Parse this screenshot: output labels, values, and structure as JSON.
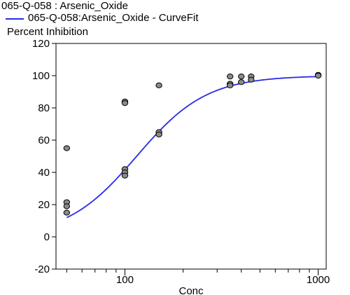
{
  "chart_data": {
    "type": "scatter",
    "title": "065-Q-058 : Arsenic_Oxide",
    "legend": [
      {
        "label": "065-Q-058:Arsenic_Oxide - CurveFit",
        "color": "#2a2ae6"
      }
    ],
    "ylabel": "Percent Inhibition",
    "xlabel": "Conc",
    "x_scale": "log",
    "xlim": [
      44,
      1100
    ],
    "ylim": [
      -20,
      120
    ],
    "y_ticks": [
      -20,
      0,
      20,
      40,
      60,
      80,
      100,
      120
    ],
    "x_major_ticks": [
      100,
      1000
    ],
    "x_minor_ticks": [
      50,
      60,
      70,
      80,
      90,
      200,
      300,
      400,
      500,
      600,
      700,
      800,
      900
    ],
    "grid": false,
    "points": [
      {
        "x": 50,
        "y": 55
      },
      {
        "x": 50,
        "y": 21.5
      },
      {
        "x": 50,
        "y": 19
      },
      {
        "x": 50,
        "y": 15
      },
      {
        "x": 100,
        "y": 84
      },
      {
        "x": 100,
        "y": 83
      },
      {
        "x": 100,
        "y": 42
      },
      {
        "x": 100,
        "y": 40
      },
      {
        "x": 100,
        "y": 38
      },
      {
        "x": 150,
        "y": 94
      },
      {
        "x": 150,
        "y": 65
      },
      {
        "x": 150,
        "y": 63.5
      },
      {
        "x": 350,
        "y": 99.5
      },
      {
        "x": 350,
        "y": 95
      },
      {
        "x": 350,
        "y": 94
      },
      {
        "x": 400,
        "y": 99.5
      },
      {
        "x": 400,
        "y": 96
      },
      {
        "x": 450,
        "y": 99.5
      },
      {
        "x": 450,
        "y": 97.5
      },
      {
        "x": 1000,
        "y": 100.5
      },
      {
        "x": 1000,
        "y": 100
      }
    ],
    "curve_fit": {
      "model": "4PL",
      "bottom": 0,
      "top": 100,
      "ec50": 115,
      "hill": 2.4,
      "x_range": [
        50,
        1000
      ]
    },
    "colors": {
      "curve": "#2a2ae6",
      "point_fill": "#8a8a8a",
      "point_stroke": "#000000",
      "axis": "#000000"
    }
  }
}
